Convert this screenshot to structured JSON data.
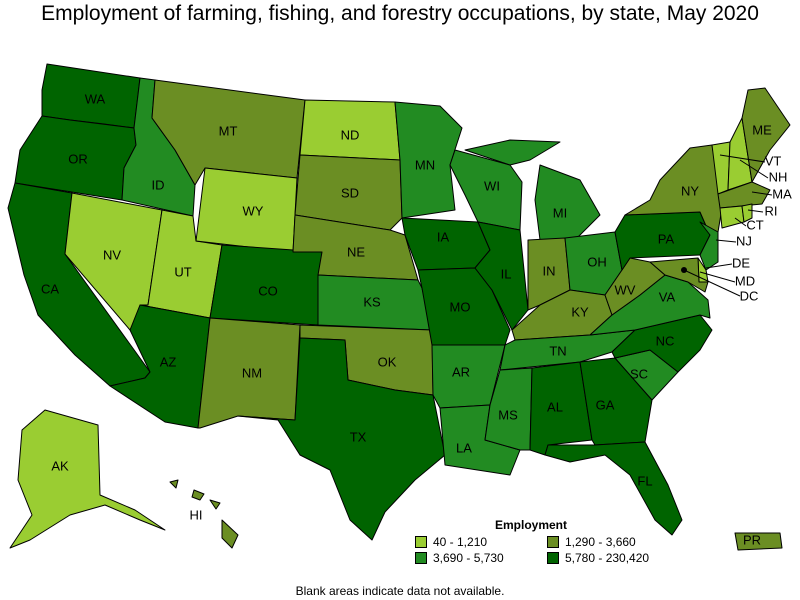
{
  "title": "Employment of farming, fishing, and forestry occupations, by state, May 2020",
  "legend": {
    "title": "Employment",
    "ranges": [
      {
        "label": "40 - 1,210",
        "color": "#9acd32"
      },
      {
        "label": "1,290 - 3,660",
        "color": "#6b8e23"
      },
      {
        "label": "3,690 - 5,730",
        "color": "#228b22"
      },
      {
        "label": "5,780 - 230,420",
        "color": "#006400"
      }
    ]
  },
  "note": "Blank areas indicate data not available.",
  "states": {
    "WA": {
      "label": "WA",
      "class": 3
    },
    "OR": {
      "label": "OR",
      "class": 3
    },
    "CA": {
      "label": "CA",
      "class": 3
    },
    "ID": {
      "label": "ID",
      "class": 2
    },
    "NV": {
      "label": "NV",
      "class": 0
    },
    "UT": {
      "label": "UT",
      "class": 0
    },
    "AZ": {
      "label": "AZ",
      "class": 3
    },
    "MT": {
      "label": "MT",
      "class": 1
    },
    "WY": {
      "label": "WY",
      "class": 0
    },
    "CO": {
      "label": "CO",
      "class": 3
    },
    "NM": {
      "label": "NM",
      "class": 1
    },
    "ND": {
      "label": "ND",
      "class": 0
    },
    "SD": {
      "label": "SD",
      "class": 1
    },
    "NE": {
      "label": "NE",
      "class": 1
    },
    "KS": {
      "label": "KS",
      "class": 2
    },
    "OK": {
      "label": "OK",
      "class": 1
    },
    "TX": {
      "label": "TX",
      "class": 3
    },
    "MN": {
      "label": "MN",
      "class": 2
    },
    "IA": {
      "label": "IA",
      "class": 3
    },
    "MO": {
      "label": "MO",
      "class": 3
    },
    "AR": {
      "label": "AR",
      "class": 2
    },
    "LA": {
      "label": "LA",
      "class": 2
    },
    "WI": {
      "label": "WI",
      "class": 2
    },
    "IL": {
      "label": "IL",
      "class": 3
    },
    "MI": {
      "label": "MI",
      "class": 2
    },
    "IN": {
      "label": "IN",
      "class": 1
    },
    "OH": {
      "label": "OH",
      "class": 2
    },
    "KY": {
      "label": "KY",
      "class": 1
    },
    "TN": {
      "label": "TN",
      "class": 2
    },
    "MS": {
      "label": "MS",
      "class": 2
    },
    "AL": {
      "label": "AL",
      "class": 3
    },
    "GA": {
      "label": "GA",
      "class": 3
    },
    "FL": {
      "label": "FL",
      "class": 3
    },
    "SC": {
      "label": "SC",
      "class": 2
    },
    "NC": {
      "label": "NC",
      "class": 3
    },
    "VA": {
      "label": "VA",
      "class": 2
    },
    "WV": {
      "label": "WV",
      "class": 1
    },
    "PA": {
      "label": "PA",
      "class": 3
    },
    "NY": {
      "label": "NY",
      "class": 1
    },
    "ME": {
      "label": "ME",
      "class": 1
    },
    "VT": {
      "label": "VT",
      "class": 0
    },
    "NH": {
      "label": "NH",
      "class": 0
    },
    "MA": {
      "label": "MA",
      "class": 1
    },
    "RI": {
      "label": "RI",
      "class": 0
    },
    "CT": {
      "label": "CT",
      "class": 0
    },
    "NJ": {
      "label": "NJ",
      "class": 2
    },
    "DE": {
      "label": "DE",
      "class": 0
    },
    "MD": {
      "label": "MD",
      "class": 1
    },
    "DC": {
      "label": "DC",
      "class": 3
    },
    "AK": {
      "label": "AK",
      "class": 0
    },
    "HI": {
      "label": "HI",
      "class": 1
    },
    "PR": {
      "label": "PR",
      "class": 1
    }
  }
}
